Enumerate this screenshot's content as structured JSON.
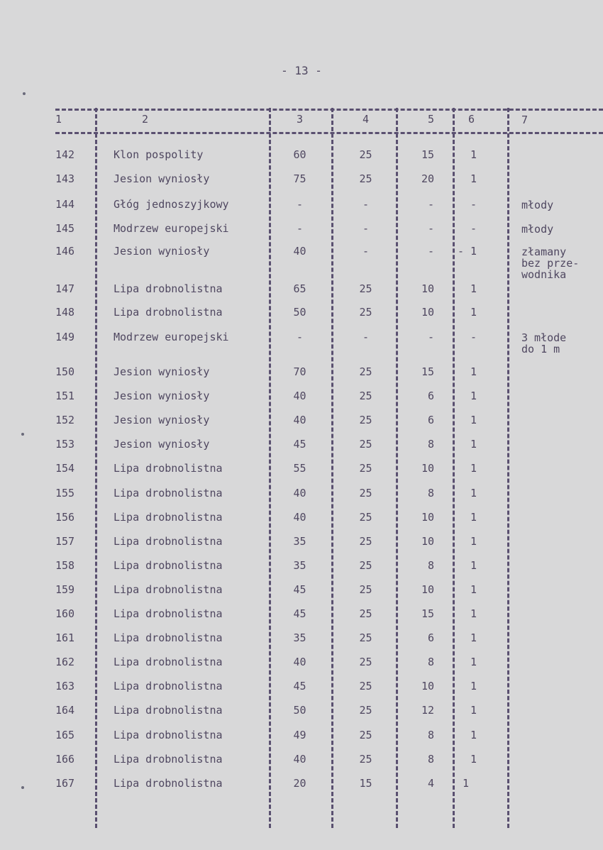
{
  "page_number": "- 13 -",
  "headers": [
    "1",
    "2",
    "3",
    "4",
    "5",
    "6",
    "7"
  ],
  "rows": [
    [
      "142",
      "Klon pospolity",
      "60",
      "25",
      "15",
      "1",
      ""
    ],
    [
      "143",
      "Jesion wyniosły",
      "75",
      "25",
      "20",
      "1",
      ""
    ],
    [
      "144",
      "Głóg jednoszyjkowy",
      "-",
      "-",
      "-",
      "-",
      "młody"
    ],
    [
      "145",
      "Modrzew europejski",
      "-",
      "-",
      "-",
      "-",
      "młody"
    ],
    [
      "146",
      "Jesion wyniosły",
      "40",
      "-",
      "-",
      "- 1",
      "złamany\nbez prze-\nwodnika"
    ],
    [
      "147",
      "Lipa drobnolistna",
      "65",
      "25",
      "10",
      "1",
      ""
    ],
    [
      "148",
      "Lipa drobnolistna",
      "50",
      "25",
      "10",
      "1",
      ""
    ],
    [
      "149",
      "Modrzew europejski",
      "-",
      "-",
      "-",
      "-",
      "3 młode\ndo 1 m"
    ],
    [
      "150",
      "Jesion wyniosły",
      "70",
      "25",
      "15",
      "1",
      ""
    ],
    [
      "151",
      "Jesion wyniosły",
      "40",
      "25",
      "6",
      "1",
      ""
    ],
    [
      "152",
      "Jesion wyniosły",
      "40",
      "25",
      "6",
      "1",
      ""
    ],
    [
      "153",
      "Jesion wyniosły",
      "45",
      "25",
      "8",
      "1",
      ""
    ],
    [
      "154",
      "Lipa drobnolistna",
      "55",
      "25",
      "10",
      "1",
      ""
    ],
    [
      "155",
      "Lipa drobnolistna",
      "40",
      "25",
      "8",
      "1",
      ""
    ],
    [
      "156",
      "Lipa drobnolistna",
      "40",
      "25",
      "10",
      "1",
      ""
    ],
    [
      "157",
      "Lipa drobnolistna",
      "35",
      "25",
      "10",
      "1",
      ""
    ],
    [
      "158",
      "Lipa drobnolistna",
      "35",
      "25",
      "8",
      "1",
      ""
    ],
    [
      "159",
      "Lipa drobnolistna",
      "45",
      "25",
      "10",
      "1",
      ""
    ],
    [
      "160",
      "Lipa drobnolistna",
      "45",
      "25",
      "15",
      "1",
      ""
    ],
    [
      "161",
      "Lipa drobnolistna",
      "35",
      "25",
      "6",
      "1",
      ""
    ],
    [
      "162",
      "Lipa drobnolistna",
      "40",
      "25",
      "8",
      "1",
      ""
    ],
    [
      "163",
      "Lipa drobnolistna",
      "45",
      "25",
      "10",
      "1",
      ""
    ],
    [
      "164",
      "Lipa drobnolistna",
      "50",
      "25",
      "12",
      "1",
      ""
    ],
    [
      "165",
      "Lipa drobnolistna",
      "49",
      "25",
      "8",
      "1",
      ""
    ],
    [
      "166",
      "Lipa drobnolistna",
      "40",
      "25",
      "8",
      "1",
      ""
    ],
    [
      "167",
      "Lipa drobnolistna",
      "20",
      "15",
      "4",
      "1",
      ""
    ]
  ]
}
